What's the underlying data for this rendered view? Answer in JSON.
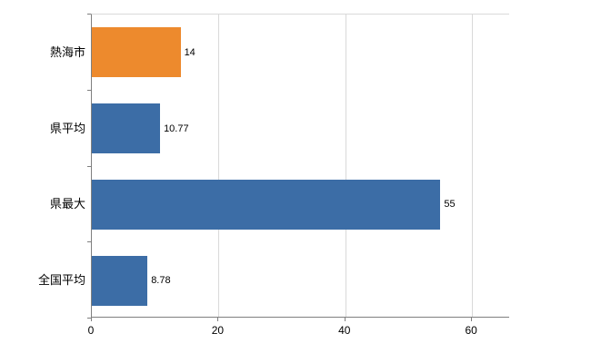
{
  "chart_data": {
    "type": "bar",
    "orientation": "horizontal",
    "title": "",
    "xlabel": "",
    "ylabel": "",
    "categories": [
      "熱海市",
      "県平均",
      "県最大",
      "全国平均"
    ],
    "values": [
      14,
      10.77,
      55,
      8.78
    ],
    "value_labels": [
      "14",
      "10.77",
      "55",
      "8.78"
    ],
    "bar_colors": [
      "#ED8A2D",
      "#3C6DA6",
      "#3C6DA6",
      "#3C6DA6"
    ],
    "xlim": [
      0,
      66
    ],
    "x_ticks": [
      0,
      20,
      40,
      60
    ],
    "x_tick_labels": [
      "0",
      "20",
      "40",
      "60"
    ],
    "grid": true,
    "legend": "none",
    "colors": {
      "highlight_bar": "#ED8A2D",
      "default_bar": "#3C6DA6",
      "gridline": "#d9d9d9",
      "axis_line": "#7f7f7f",
      "background": "#ffffff",
      "text": "#000000"
    }
  }
}
